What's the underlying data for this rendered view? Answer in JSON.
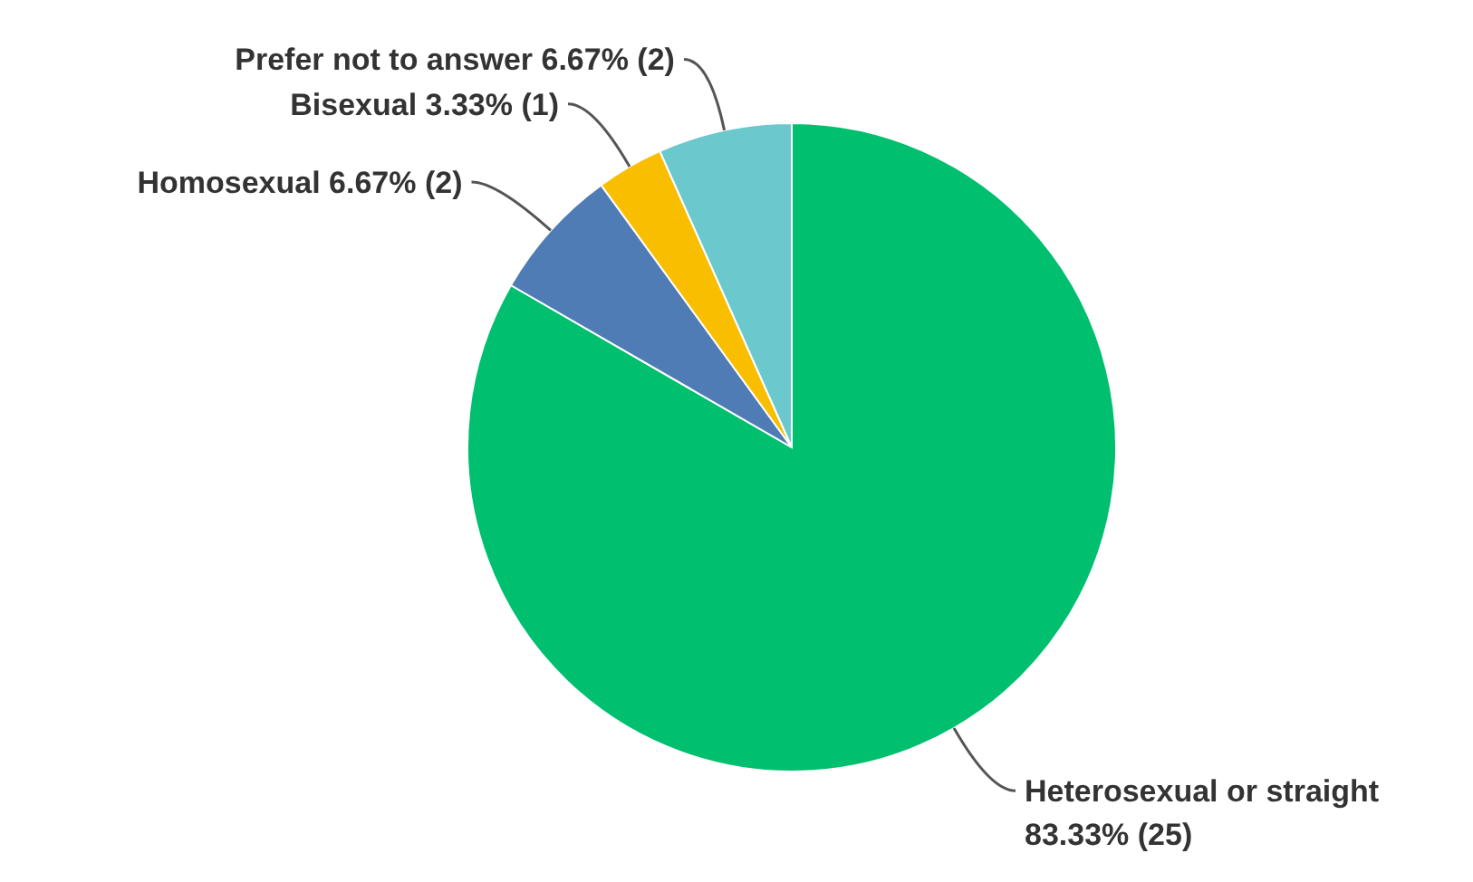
{
  "chart_data": {
    "type": "pie",
    "categories": [
      "Heterosexual or straight",
      "Homosexual",
      "Bisexual",
      "Prefer not to answer"
    ],
    "values": [
      25,
      2,
      1,
      2
    ],
    "colors": [
      "#00bf6f",
      "#507cb6",
      "#f9be00",
      "#6bc8cd"
    ],
    "value_labels": [
      "83.33% (25)",
      "6.67% (2)",
      "3.33% (1)",
      "6.67% (2)"
    ]
  }
}
